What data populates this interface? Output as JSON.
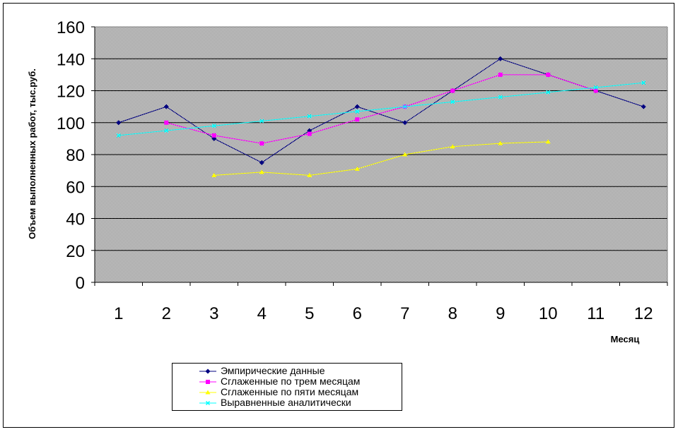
{
  "chart_data": {
    "type": "line",
    "title": "",
    "xlabel": "Месяц",
    "ylabel": "Объем выполненных работ, тыс.руб.",
    "x": [
      1,
      2,
      3,
      4,
      5,
      6,
      7,
      8,
      9,
      10,
      11,
      12
    ],
    "ylim": [
      0,
      160
    ],
    "yticks": [
      0,
      20,
      40,
      60,
      80,
      100,
      120,
      140,
      160
    ],
    "grid": true,
    "legend_position": "bottom",
    "plot_background": "#c0c0c0",
    "series": [
      {
        "name": "Эмпирические данные",
        "color": "#000080",
        "marker": "diamond",
        "values": [
          100,
          110,
          90,
          75,
          95,
          110,
          100,
          120,
          140,
          130,
          120,
          110
        ]
      },
      {
        "name": "Сглаженные по трем месяцам",
        "color": "#ff00ff",
        "marker": "square",
        "values": [
          null,
          100,
          92,
          87,
          93,
          102,
          110,
          120,
          130,
          130,
          120,
          null
        ]
      },
      {
        "name": "Сглаженные по пяти месяцам",
        "color": "#ffff00",
        "marker": "triangle",
        "values": [
          null,
          null,
          67,
          69,
          67,
          71,
          80,
          85,
          87,
          88,
          null,
          null
        ]
      },
      {
        "name": "Выравненные аналитически",
        "color": "#00ffff",
        "marker": "x",
        "values": [
          92,
          95,
          98,
          101,
          104,
          107,
          110,
          113,
          116,
          119,
          122,
          125
        ]
      }
    ]
  }
}
